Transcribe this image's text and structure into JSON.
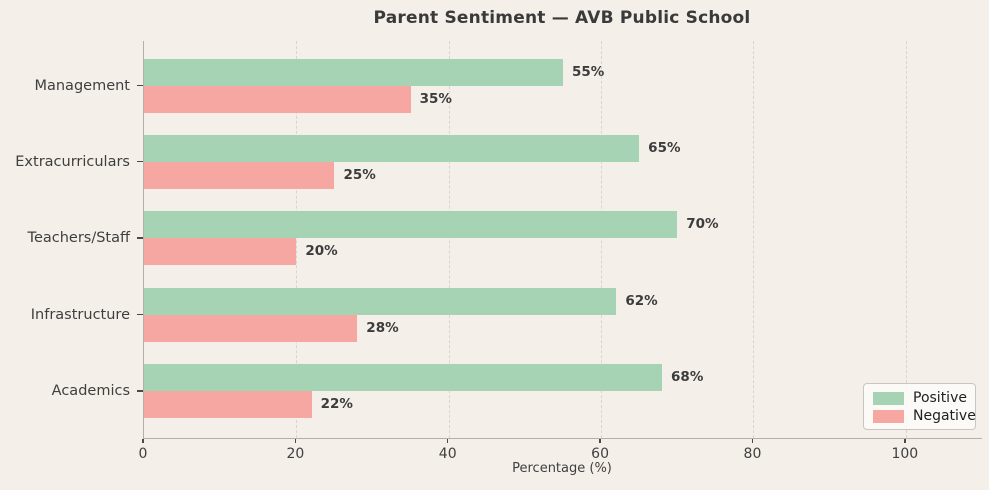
{
  "title": "Parent Sentiment — AVB Public School",
  "chart_data": {
    "type": "bar",
    "orientation": "horizontal",
    "title": "Parent Sentiment — AVB Public School",
    "categories": [
      "Management",
      "Extracurriculars",
      "Teachers/Staff",
      "Infrastructure",
      "Academics"
    ],
    "series": [
      {
        "name": "Positive",
        "color": "#a6d3b3",
        "values": [
          55,
          65,
          70,
          62,
          68
        ]
      },
      {
        "name": "Negative",
        "color": "#f6a7a1",
        "values": [
          35,
          25,
          20,
          28,
          22
        ]
      }
    ],
    "value_label_format": "{v}%",
    "xlabel": "Percentage (%)",
    "x_ticks": [
      0,
      20,
      40,
      60,
      80,
      100
    ],
    "xlim": [
      0,
      110
    ],
    "grid": "vertical-dashed",
    "legend_position": "lower right",
    "legend_entries": [
      "Positive",
      "Negative"
    ]
  },
  "colors": {
    "background": "#f4efe9",
    "positive": "#a6d3b3",
    "negative": "#f6a7a1",
    "gridline": "#d8d4cf",
    "spine": "#b3b0ab",
    "text": "#3f3f3f"
  }
}
